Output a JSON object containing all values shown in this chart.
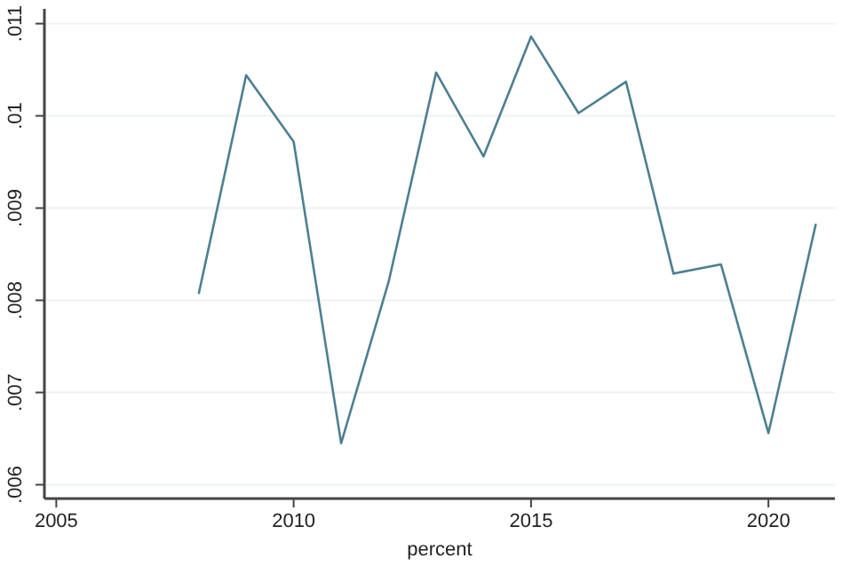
{
  "chart_data": {
    "type": "line",
    "xlabel": "percent",
    "x": [
      2008,
      2009,
      2010,
      2011,
      2012,
      2013,
      2014,
      2015,
      2016,
      2017,
      2018,
      2019,
      2020,
      2021
    ],
    "series": [
      {
        "color": "#4d7f91",
        "values": [
          0.00807,
          0.01044,
          0.00972,
          0.00645,
          0.0082,
          0.01047,
          0.00956,
          0.01086,
          0.01003,
          0.01037,
          0.00829,
          0.00839,
          0.00656,
          0.00883
        ]
      }
    ],
    "xlim": [
      2004.75,
      2021.4
    ],
    "xticks": [
      2005,
      2010,
      2015,
      2020
    ],
    "ylim": [
      0.00585,
      0.01116
    ],
    "yticks": [
      {
        "value": 0.006,
        "label": ".006"
      },
      {
        "value": 0.007,
        "label": ".007"
      },
      {
        "value": 0.008,
        "label": ".008"
      },
      {
        "value": 0.009,
        "label": ".009"
      },
      {
        "value": 0.01,
        "label": ".01"
      },
      {
        "value": 0.011,
        "label": ".011"
      }
    ],
    "grid": "y",
    "marker": "none",
    "line_style": "solid"
  }
}
